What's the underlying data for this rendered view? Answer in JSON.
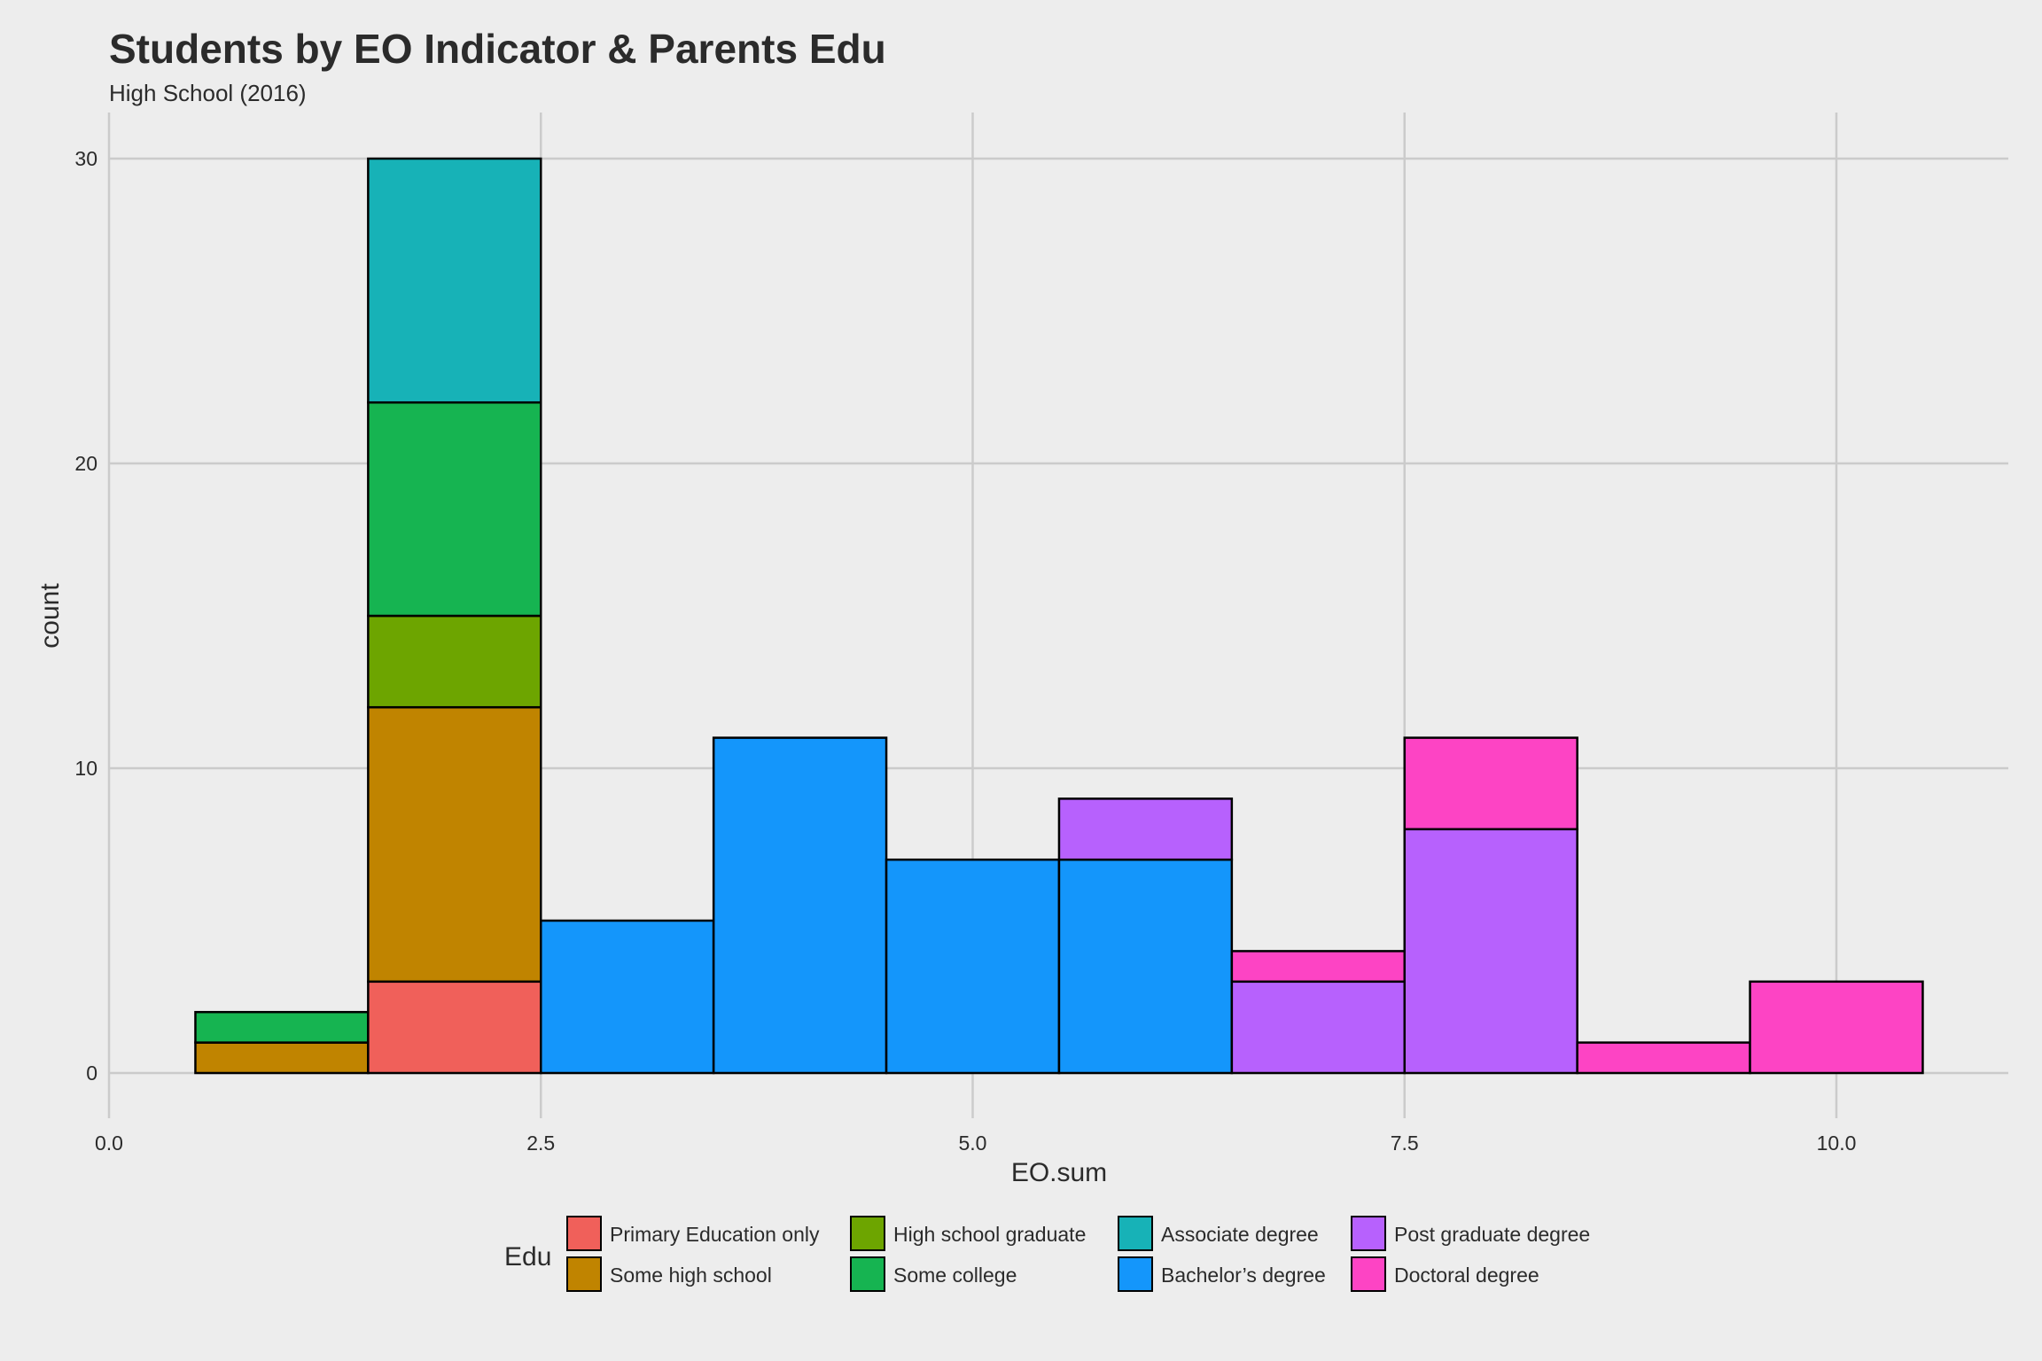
{
  "chart_data": {
    "type": "bar",
    "subtype": "stacked-histogram",
    "title": "Students by EO Indicator & Parents Edu",
    "subtitle": "High School (2016)",
    "xlabel": "EO.sum",
    "ylabel": "count",
    "xlim": [
      0,
      11
    ],
    "ylim": [
      0,
      31
    ],
    "x_ticks": [
      0,
      2.5,
      5,
      7.5,
      10
    ],
    "x_tick_labels": [
      "0.0",
      "2.5",
      "5.0",
      "7.5",
      "10.0"
    ],
    "y_ticks": [
      0,
      10,
      20,
      30
    ],
    "y_tick_labels": [
      "0",
      "10",
      "20",
      "30"
    ],
    "grid": true,
    "legend": {
      "title": "Edu",
      "placement": "bottom",
      "entries": [
        {
          "name": "Primary Education only",
          "color": "#f0605a"
        },
        {
          "name": "Some high school",
          "color": "#c08400"
        },
        {
          "name": "High school graduate",
          "color": "#6da500"
        },
        {
          "name": "Some college",
          "color": "#16b451"
        },
        {
          "name": "Associate degree",
          "color": "#17b2b7"
        },
        {
          "name": "Bachelor’s degree",
          "color": "#1496fb"
        },
        {
          "name": "Post graduate degree",
          "color": "#b761fd"
        },
        {
          "name": "Doctoral degree",
          "color": "#fd44c4"
        }
      ]
    },
    "bins": [
      {
        "x_start": 0.5,
        "x_end": 1.5,
        "segments": [
          {
            "series": "Some high school",
            "value": 1
          },
          {
            "series": "Some college",
            "value": 1
          }
        ]
      },
      {
        "x_start": 1.5,
        "x_end": 2.5,
        "segments": [
          {
            "series": "Primary Education only",
            "value": 3
          },
          {
            "series": "Some high school",
            "value": 9
          },
          {
            "series": "High school graduate",
            "value": 3
          },
          {
            "series": "Some college",
            "value": 7
          },
          {
            "series": "Associate degree",
            "value": 8
          }
        ]
      },
      {
        "x_start": 2.5,
        "x_end": 3.5,
        "segments": [
          {
            "series": "Bachelor’s degree",
            "value": 5
          }
        ]
      },
      {
        "x_start": 3.5,
        "x_end": 4.5,
        "segments": [
          {
            "series": "Bachelor’s degree",
            "value": 11
          }
        ]
      },
      {
        "x_start": 4.5,
        "x_end": 5.5,
        "segments": [
          {
            "series": "Bachelor’s degree",
            "value": 7
          }
        ]
      },
      {
        "x_start": 5.5,
        "x_end": 6.5,
        "segments": [
          {
            "series": "Bachelor’s degree",
            "value": 7
          },
          {
            "series": "Post graduate degree",
            "value": 2
          }
        ]
      },
      {
        "x_start": 6.5,
        "x_end": 7.5,
        "segments": [
          {
            "series": "Post graduate degree",
            "value": 3
          },
          {
            "series": "Doctoral degree",
            "value": 1
          }
        ]
      },
      {
        "x_start": 7.5,
        "x_end": 8.5,
        "segments": [
          {
            "series": "Post graduate degree",
            "value": 8
          },
          {
            "series": "Doctoral degree",
            "value": 3
          }
        ]
      },
      {
        "x_start": 8.5,
        "x_end": 9.5,
        "segments": [
          {
            "series": "Doctoral degree",
            "value": 1
          }
        ]
      },
      {
        "x_start": 9.5,
        "x_end": 10.5,
        "segments": [
          {
            "series": "Doctoral degree",
            "value": 3
          }
        ]
      }
    ]
  }
}
